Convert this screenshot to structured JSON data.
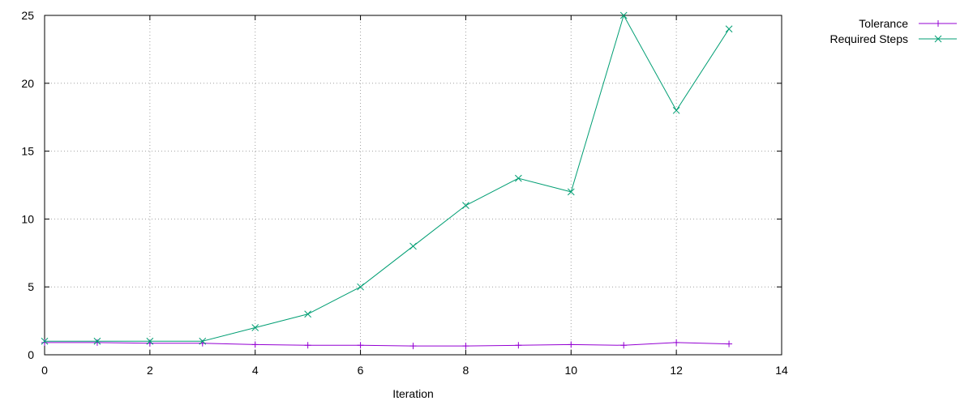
{
  "chart_data": {
    "type": "line",
    "title": "",
    "xlabel": "Iteration",
    "ylabel": "",
    "xlim": [
      0,
      14
    ],
    "ylim": [
      0,
      25
    ],
    "xticks": [
      0,
      2,
      4,
      6,
      8,
      10,
      12,
      14
    ],
    "yticks": [
      0,
      5,
      10,
      15,
      20,
      25
    ],
    "grid": true,
    "legend_position": "outside-top-right",
    "series": [
      {
        "name": "Tolerance",
        "color": "#9400d3",
        "marker": "plus",
        "x": [
          0,
          1,
          2,
          3,
          4,
          5,
          6,
          7,
          8,
          9,
          10,
          11,
          12,
          13
        ],
        "y": [
          0.9,
          0.9,
          0.85,
          0.85,
          0.75,
          0.7,
          0.7,
          0.65,
          0.65,
          0.7,
          0.75,
          0.7,
          0.9,
          0.8
        ]
      },
      {
        "name": "Required Steps",
        "color": "#009e73",
        "marker": "cross",
        "x": [
          0,
          1,
          2,
          3,
          4,
          5,
          6,
          7,
          8,
          9,
          10,
          11,
          12,
          13
        ],
        "y": [
          1,
          1,
          1,
          1,
          2,
          3,
          5,
          8,
          11,
          13,
          12,
          25,
          18,
          24
        ]
      }
    ]
  }
}
